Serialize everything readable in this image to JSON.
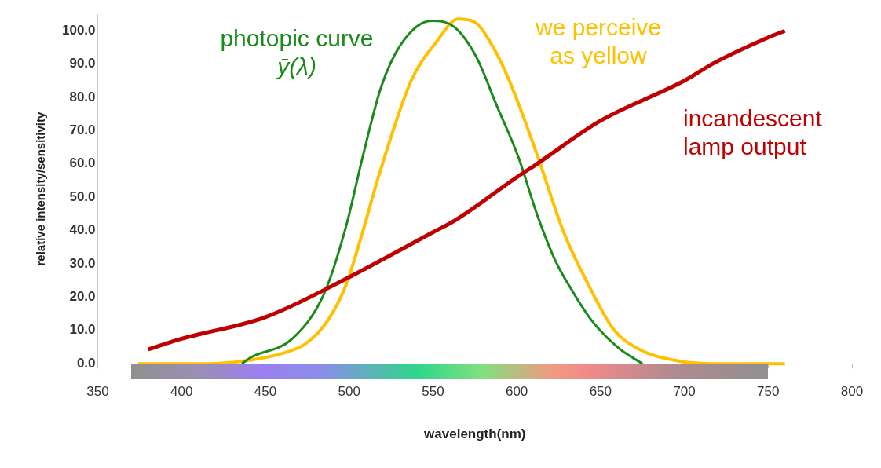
{
  "chart_data": {
    "type": "line",
    "xlabel": "wavelength(nm)",
    "ylabel": "relative intensity/sensitivity",
    "xlim": [
      350,
      800
    ],
    "xticks": [
      350,
      400,
      450,
      500,
      550,
      600,
      650,
      700,
      750,
      800
    ],
    "ylim": [
      0,
      105
    ],
    "yticks": [
      {
        "value": 0,
        "label": "0.0"
      },
      {
        "value": 10,
        "label": "10.0"
      },
      {
        "value": 20,
        "label": "20.0"
      },
      {
        "value": 30,
        "label": "30.0"
      },
      {
        "value": 40,
        "label": "40.0"
      },
      {
        "value": 50,
        "label": "50.0"
      },
      {
        "value": 60,
        "label": "60.0"
      },
      {
        "value": 70,
        "label": "70.0"
      },
      {
        "value": 80,
        "label": "80.0"
      },
      {
        "value": 90,
        "label": "90.0"
      },
      {
        "value": 100,
        "label": "100.0"
      }
    ],
    "grid": false,
    "legend": false,
    "marker": "none",
    "line_style": "solid",
    "series": [
      {
        "name": "incandescent\nlamp output",
        "color": "#c00000",
        "x": [
          380,
          400,
          450,
          500,
          550,
          563,
          600,
          612,
          650,
          700,
          718,
          750,
          760
        ],
        "values": [
          4.3,
          7.5,
          14,
          26,
          39.5,
          43,
          56,
          60,
          73,
          85,
          90.4,
          98,
          100
        ]
      },
      {
        "name": "photopic curve\nȳ(λ)",
        "color": "#1a8a1a",
        "x": [
          436,
          441,
          466,
          485,
          498,
          508,
          519,
          531,
          549,
          563,
          576,
          588,
          601,
          612,
          623,
          633,
          645,
          661,
          675
        ],
        "values": [
          0,
          1.8,
          7.5,
          21,
          41,
          62,
          83,
          96,
          103,
          101,
          92,
          77.6,
          62,
          45,
          31,
          22,
          12.8,
          4.6,
          0
        ]
      },
      {
        "name": "we perceive\nas yellow",
        "color": "#ffc000",
        "x": [
          374,
          417,
          441,
          462,
          474,
          487,
          498,
          508,
          518,
          537,
          552,
          565,
          574.5,
          586,
          596,
          612,
          628,
          643,
          657.5,
          672,
          693.5,
          716,
          760
        ],
        "values": [
          0,
          0,
          1.1,
          3.4,
          6,
          12.8,
          23.5,
          39.5,
          57,
          85,
          96.6,
          103.5,
          102.7,
          95,
          84.5,
          63,
          39.5,
          23.5,
          10.5,
          4.6,
          1.1,
          0,
          0
        ]
      }
    ]
  }
}
